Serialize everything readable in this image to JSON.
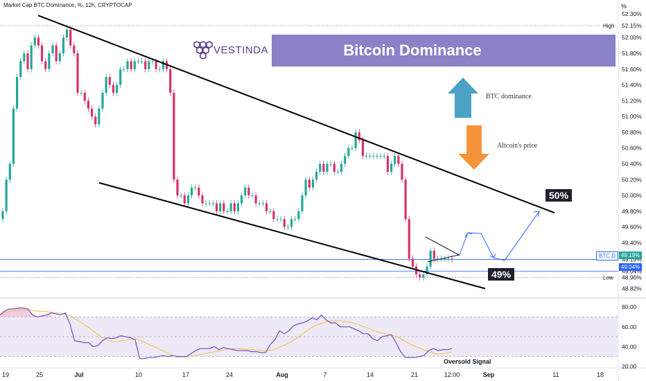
{
  "header": {
    "title": "Market Cap BTC Dominance, %, 12h, CRYPTOCAP",
    "axis_unit": "%"
  },
  "brand": "VESTINDA",
  "banner_title": "Bitcoin Dominance",
  "annotations": {
    "up_arrow_label": "BTC dominance",
    "down_arrow_label": "Altcoin's price",
    "target_high": "50%",
    "target_low": "49%",
    "oversold": "Oversold Signal"
  },
  "colors": {
    "up_candle": "#26a69a",
    "down_candle": "#d6336c",
    "banner": "#8a82c6",
    "up_arrow": "#4aa3c4",
    "down_arrow": "#f5943b",
    "price_line": "#2962ff",
    "rsi_line": "#7e57c2",
    "rsi_ma": "#f0c040"
  },
  "chart_data": {
    "type": "candlestick",
    "ylabel": "%",
    "ylim": [
      48.72,
      52.3
    ],
    "y_ticks": [
      "52.30%",
      "52.15%",
      "52.00%",
      "51.80%",
      "51.60%",
      "51.40%",
      "51.20%",
      "51.00%",
      "50.80%",
      "50.60%",
      "50.40%",
      "50.20%",
      "50.00%",
      "49.80%",
      "49.60%",
      "49.40%",
      "49.19%",
      "49.04%",
      "48.96%",
      "48.82%"
    ],
    "x_ticks": [
      "19",
      "25",
      "Jul",
      "10",
      "17",
      "24",
      "Aug",
      "7",
      "14",
      "21",
      "12:00",
      "Sep",
      "11",
      "18"
    ],
    "high": {
      "label": "High",
      "value": 52.15
    },
    "low": {
      "label": "Low",
      "value": 48.96
    },
    "current": {
      "label": "BTC.D",
      "value": 49.19,
      "text": "49.19%"
    },
    "level_line": {
      "value": 49.04,
      "text": "49.04%"
    },
    "trendlines": [
      {
        "name": "channel-upper",
        "from": [
          0.0,
          52.28
        ],
        "to": [
          1.0,
          49.78
        ]
      },
      {
        "name": "channel-lower",
        "from": [
          0.0,
          50.16
        ],
        "to": [
          1.0,
          48.82
        ]
      }
    ],
    "candles_close": [
      49.8,
      50.2,
      50.4,
      51.1,
      51.5,
      51.7,
      51.8,
      51.6,
      51.9,
      52.0,
      51.9,
      51.7,
      51.6,
      51.8,
      51.9,
      51.7,
      51.8,
      52.0,
      52.1,
      51.9,
      51.8,
      51.3,
      51.3,
      51.2,
      51.1,
      51.0,
      50.9,
      51.1,
      51.3,
      51.5,
      51.4,
      51.3,
      51.4,
      51.6,
      51.6,
      51.7,
      51.6,
      51.7,
      51.7,
      51.7,
      51.6,
      51.7,
      51.7,
      51.6,
      51.6,
      51.7,
      51.6,
      51.3,
      50.2,
      50.0,
      50.0,
      49.9,
      50.0,
      50.1,
      50.1,
      50.0,
      49.9,
      49.9,
      49.9,
      49.9,
      49.8,
      49.9,
      49.8,
      49.8,
      49.9,
      49.8,
      49.9,
      50.0,
      50.1,
      50.0,
      50.0,
      49.9,
      49.9,
      49.9,
      49.8,
      49.8,
      49.7,
      49.7,
      49.7,
      49.6,
      49.6,
      49.7,
      49.7,
      49.8,
      50.0,
      50.2,
      50.1,
      50.2,
      50.3,
      50.4,
      50.3,
      50.4,
      50.4,
      50.3,
      50.3,
      50.4,
      50.5,
      50.6,
      50.6,
      50.8,
      50.7,
      50.5,
      50.5,
      50.5,
      50.5,
      50.5,
      50.5,
      50.5,
      50.3,
      50.4,
      50.5,
      50.4,
      50.2,
      49.7,
      49.2,
      49.1,
      49.0,
      48.96,
      49.0,
      49.1,
      49.3,
      49.2,
      49.2,
      49.2,
      49.2,
      49.2,
      49.19
    ],
    "rsi": {
      "ylim": [
        20,
        85
      ],
      "ticks": [
        "80.00",
        "60.00",
        "40.00",
        "20.00"
      ],
      "bands": [
        70,
        50,
        30
      ],
      "values": [
        72,
        76,
        78,
        78,
        79,
        79,
        78,
        72,
        70,
        71,
        72,
        74,
        73,
        72,
        74,
        63,
        46,
        45,
        44,
        44,
        40,
        41,
        46,
        49,
        48,
        49,
        51,
        50,
        49,
        47,
        28,
        28,
        29,
        29,
        30,
        31,
        30,
        31,
        30,
        30,
        30,
        33,
        36,
        38,
        38,
        38,
        40,
        37,
        39,
        38,
        37,
        36,
        36,
        36,
        35,
        35,
        34,
        34,
        42,
        47,
        56,
        53,
        56,
        61,
        63,
        64,
        66,
        69,
        67,
        72,
        67,
        64,
        64,
        60,
        60,
        60,
        58,
        56,
        53,
        53,
        48,
        46,
        50,
        51,
        52,
        44,
        35,
        29,
        29,
        29,
        30,
        31,
        36,
        38,
        36,
        37,
        37,
        38
      ]
    }
  }
}
